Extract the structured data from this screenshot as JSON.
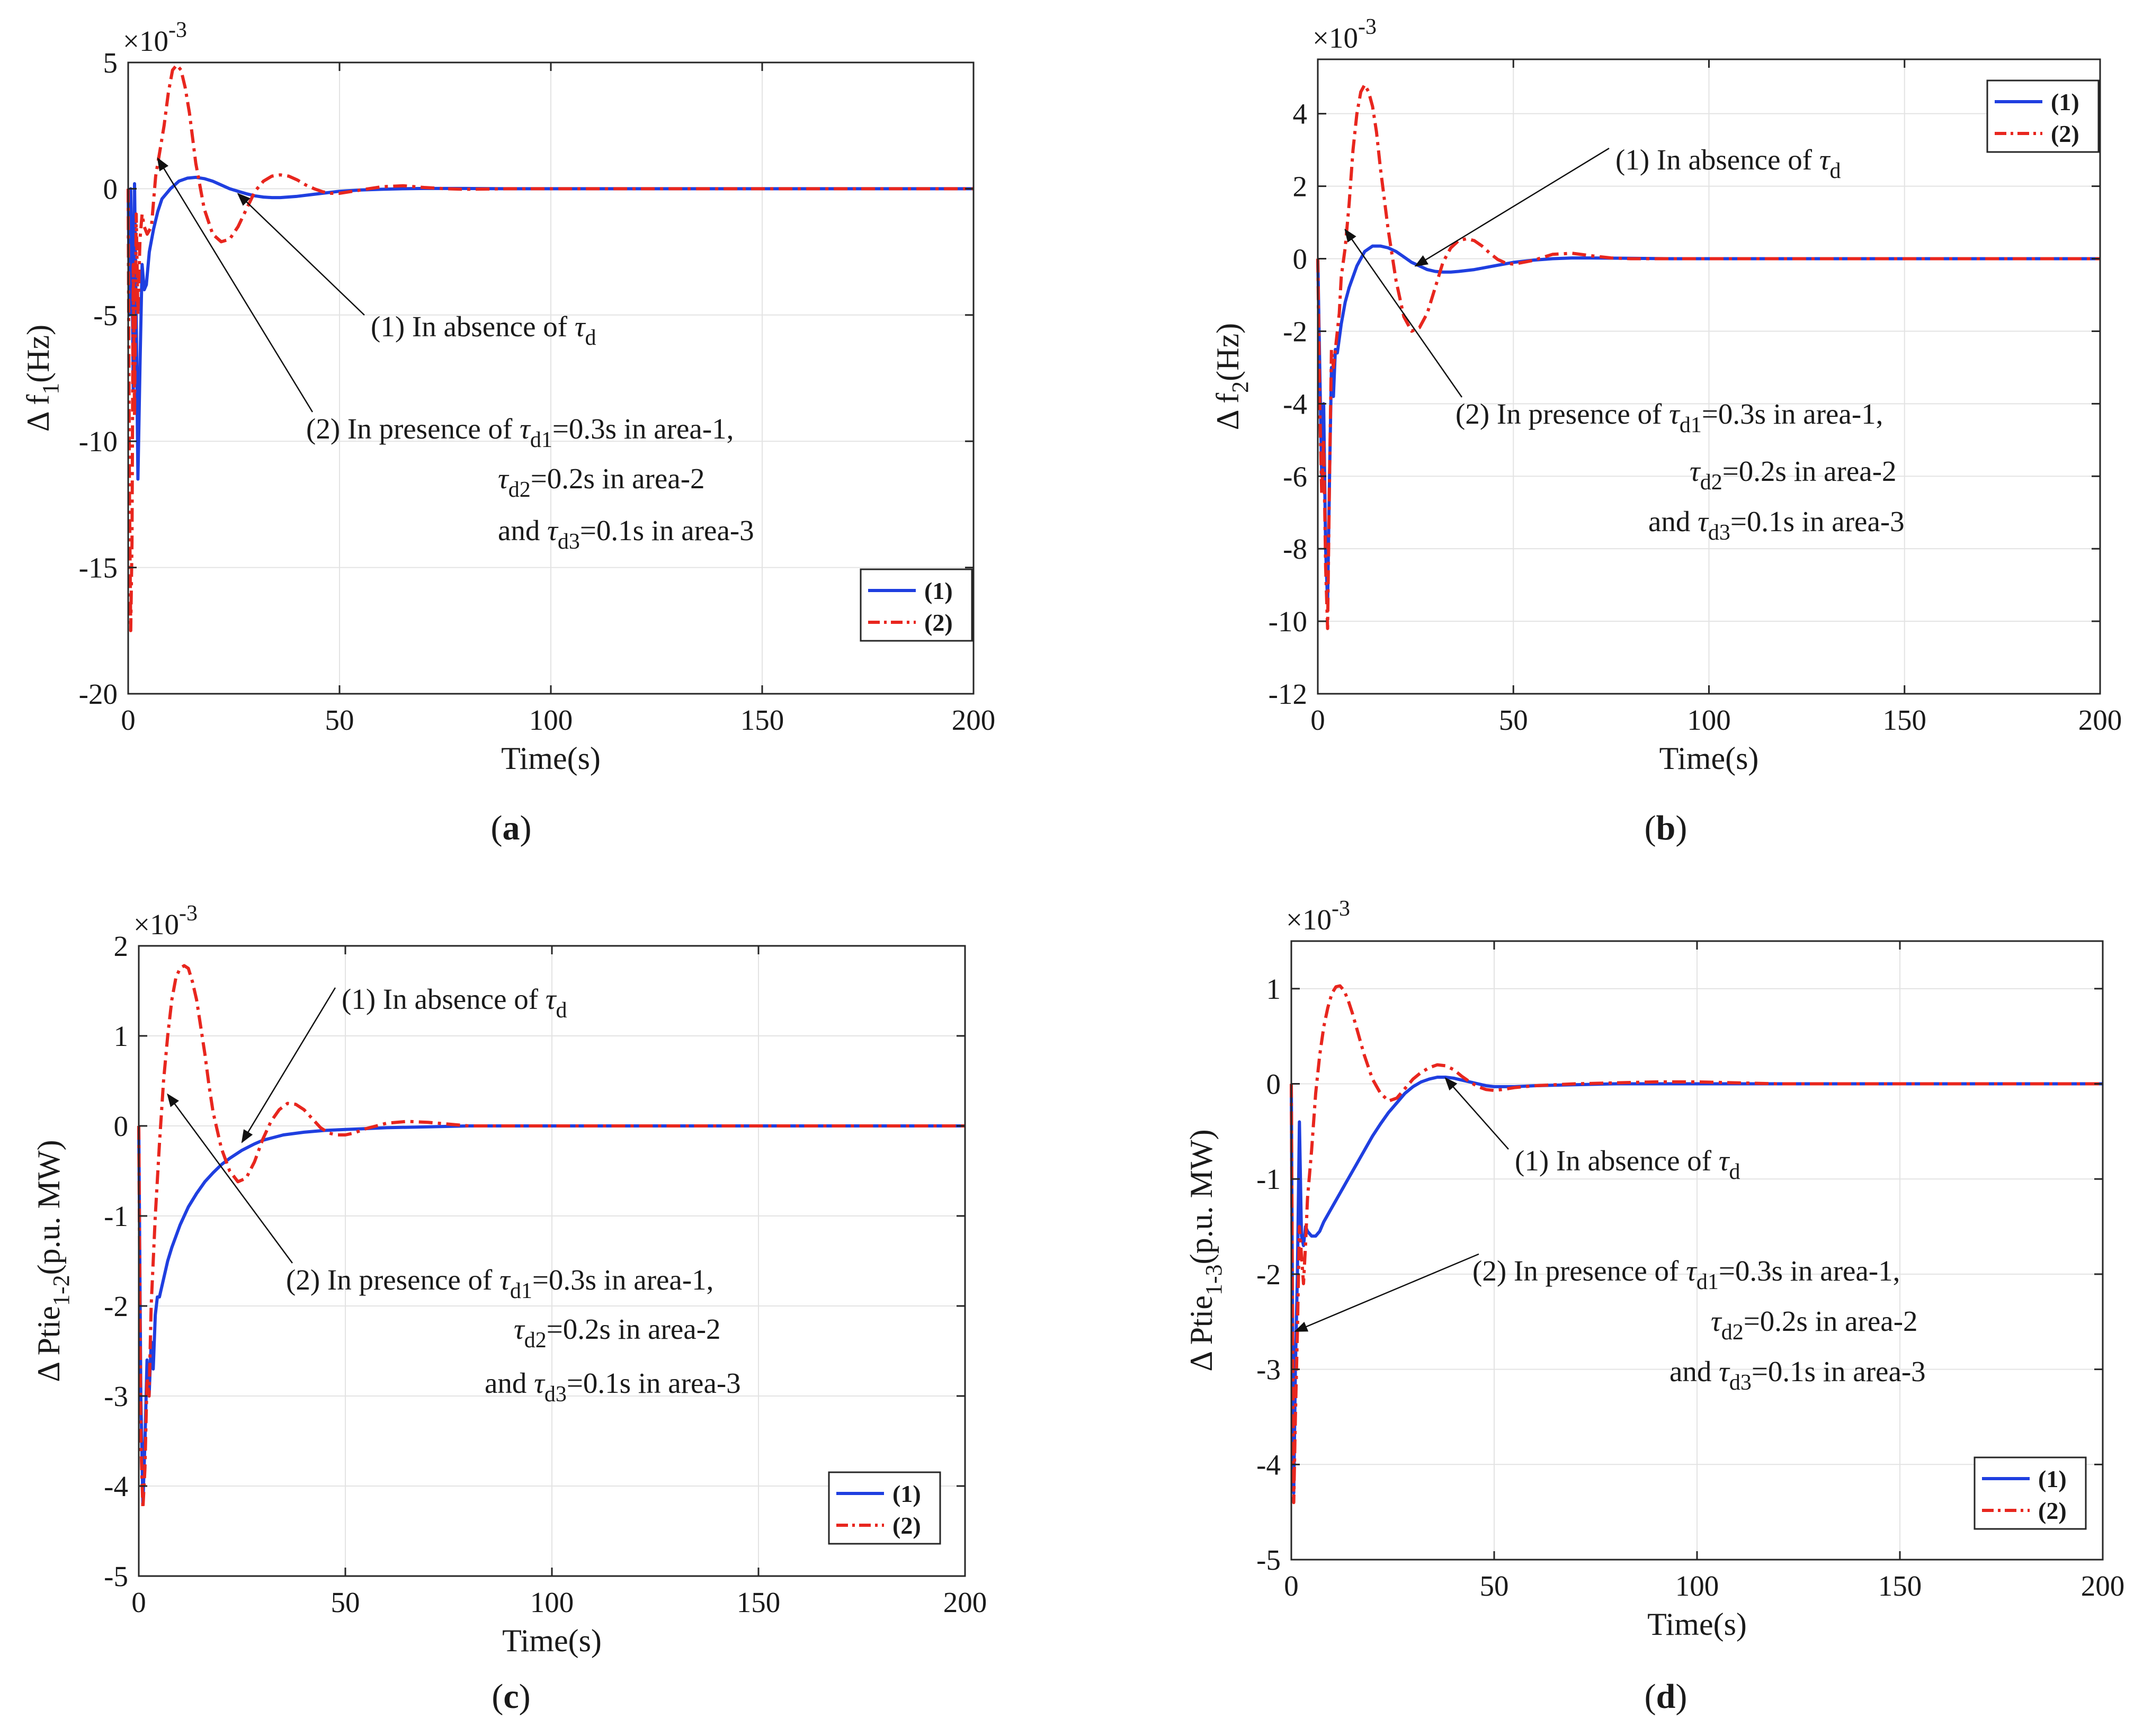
{
  "chart_data": [
    {
      "id": "a",
      "panel_label": "a",
      "type": "line",
      "title": "",
      "xlabel": "Time(s)",
      "ylabel": "Δ f",
      "ylabel_sub": "1",
      "ylabel_unit": "(Hz)",
      "exponent": "×10",
      "exponent_power": "-3",
      "xlim": [
        0,
        200
      ],
      "ylim": [
        -20,
        5
      ],
      "xticks": [
        0,
        50,
        100,
        150,
        200
      ],
      "yticks": [
        -20,
        -15,
        -10,
        -5,
        0,
        5
      ],
      "grid": true,
      "legend_position": "bottom-right",
      "series": [
        {
          "name": "(1)",
          "style": "solid",
          "color": "#1f3fe0",
          "x": [
            0,
            0.3,
            0.6,
            0.9,
            1.2,
            1.5,
            1.9,
            2.3,
            2.8,
            3.3,
            3.8,
            4.3,
            5,
            6,
            7,
            8,
            10,
            12,
            14,
            16,
            18,
            20,
            22,
            24,
            26,
            28,
            30,
            32,
            34,
            36,
            40,
            45,
            50,
            55,
            60,
            65,
            70,
            80,
            90,
            100,
            120,
            150,
            200
          ],
          "y": [
            0,
            -5,
            0,
            -3,
            -8,
            0.2,
            -5,
            -11.5,
            -7,
            -3,
            -4,
            -3.8,
            -2.5,
            -1.6,
            -0.9,
            -0.4,
            0,
            0.3,
            0.42,
            0.45,
            0.4,
            0.3,
            0.15,
            0,
            -0.1,
            -0.2,
            -0.28,
            -0.33,
            -0.35,
            -0.35,
            -0.3,
            -0.2,
            -0.1,
            -0.05,
            -0.02,
            0,
            0.01,
            0.01,
            0,
            0,
            0,
            0,
            0
          ]
        },
        {
          "name": "(2)",
          "style": "dashdot",
          "color": "#e8261e",
          "x": [
            0,
            0.3,
            0.6,
            0.9,
            1.2,
            1.5,
            1.9,
            2.3,
            2.8,
            3.3,
            3.8,
            4.5,
            5.5,
            6.5,
            7.5,
            8.5,
            9.5,
            10.5,
            11.5,
            12.5,
            13.5,
            14.5,
            16,
            18,
            20,
            22,
            24,
            26,
            28,
            30,
            32,
            34,
            36,
            38,
            40,
            42,
            44,
            46,
            48,
            50,
            55,
            60,
            65,
            70,
            75,
            80,
            90,
            100,
            200
          ],
          "y": [
            0,
            -12,
            -17.5,
            -14,
            -3,
            -9,
            -1,
            -5,
            -2,
            -1,
            -1.5,
            -1.8,
            -1.5,
            0.5,
            1.5,
            2.5,
            3.8,
            4.7,
            4.9,
            4.7,
            4,
            3,
            1,
            -0.8,
            -1.8,
            -2.1,
            -2,
            -1.5,
            -0.8,
            -0.1,
            0.3,
            0.5,
            0.55,
            0.5,
            0.35,
            0.15,
            0,
            -0.12,
            -0.18,
            -0.18,
            -0.05,
            0.08,
            0.12,
            0.05,
            0,
            -0.02,
            0,
            0,
            0
          ]
        }
      ],
      "annotations": [
        {
          "text": "(1) In absence of ",
          "sym": "τ",
          "sub": "d",
          "suffix": "",
          "arrow_to": [
            26,
            -0.2
          ]
        },
        {
          "text": "(2) In presence of ",
          "sym": "τ",
          "sub": "d1",
          "suffix": "=0.3s in area-1,",
          "arrow_to": [
            7,
            1.2
          ]
        },
        {
          "text": "",
          "sym": "τ",
          "sub": "d2",
          "suffix": "=0.2s in area-2"
        },
        {
          "text": "and ",
          "sym": "τ",
          "sub": "d3",
          "suffix": "=0.1s in area-3"
        }
      ]
    },
    {
      "id": "b",
      "panel_label": "b",
      "type": "line",
      "title": "",
      "xlabel": "Time(s)",
      "ylabel": "Δ f",
      "ylabel_sub": "2",
      "ylabel_unit": "(Hz)",
      "exponent": "×10",
      "exponent_power": "-3",
      "xlim": [
        0,
        200
      ],
      "ylim": [
        -12,
        5.5
      ],
      "xticks": [
        0,
        50,
        100,
        150,
        200
      ],
      "yticks": [
        -12,
        -10,
        -8,
        -6,
        -4,
        -2,
        0,
        2,
        4
      ],
      "grid": true,
      "legend_position": "top-right",
      "series": [
        {
          "name": "(1)",
          "style": "solid",
          "color": "#1f3fe0",
          "x": [
            0,
            0.5,
            1,
            1.5,
            2,
            2.5,
            3,
            3.5,
            4,
            4.5,
            5,
            6,
            7,
            8,
            10,
            12,
            14,
            16,
            18,
            20,
            22,
            24,
            26,
            28,
            30,
            32,
            34,
            36,
            40,
            45,
            50,
            55,
            60,
            65,
            70,
            80,
            90,
            100,
            120,
            150,
            200
          ],
          "y": [
            0,
            -3,
            -6,
            -4,
            -8,
            -9.5,
            -6,
            -3,
            -3.8,
            -2.5,
            -2.6,
            -1.8,
            -1.2,
            -0.8,
            -0.2,
            0.2,
            0.35,
            0.35,
            0.3,
            0.2,
            0.05,
            -0.1,
            -0.2,
            -0.3,
            -0.35,
            -0.37,
            -0.37,
            -0.35,
            -0.3,
            -0.2,
            -0.1,
            -0.04,
            0,
            0.02,
            0.02,
            0.01,
            0,
            0,
            0,
            0,
            0
          ]
        },
        {
          "name": "(2)",
          "style": "dashdot",
          "color": "#e8261e",
          "x": [
            0,
            0.5,
            1,
            1.5,
            2,
            2.5,
            3,
            3.5,
            4,
            4.5,
            5,
            5.5,
            6,
            7,
            8,
            9,
            10,
            11,
            12,
            13,
            14,
            15,
            16,
            18,
            20,
            22,
            24,
            26,
            28,
            30,
            32,
            34,
            36,
            38,
            40,
            42,
            44,
            46,
            48,
            50,
            55,
            60,
            65,
            70,
            75,
            80,
            90,
            100,
            200
          ],
          "y": [
            0,
            -4,
            -6.5,
            -5,
            -8.5,
            -10.2,
            -6,
            -2.5,
            -3,
            -2.5,
            -2,
            -1.5,
            -0.5,
            0.3,
            1.5,
            3,
            4,
            4.6,
            4.8,
            4.6,
            4.2,
            3.5,
            2.5,
            0.8,
            -0.6,
            -1.6,
            -2,
            -1.9,
            -1.5,
            -0.8,
            -0.1,
            0.3,
            0.5,
            0.55,
            0.5,
            0.35,
            0.15,
            -0.02,
            -0.12,
            -0.15,
            -0.05,
            0.12,
            0.15,
            0.08,
            0.02,
            0,
            0,
            0,
            0
          ]
        }
      ],
      "annotations": [
        {
          "text": "(1) In absence of ",
          "sym": "τ",
          "sub": "d",
          "suffix": "",
          "arrow_to": [
            25,
            -0.2
          ]
        },
        {
          "text": "(2) In presence of ",
          "sym": "τ",
          "sub": "d1",
          "suffix": "=0.3s in area-1,",
          "arrow_to": [
            7,
            0.8
          ]
        },
        {
          "text": "",
          "sym": "τ",
          "sub": "d2",
          "suffix": "=0.2s in area-2"
        },
        {
          "text": "and ",
          "sym": "τ",
          "sub": "d3",
          "suffix": "=0.1s in area-3"
        }
      ]
    },
    {
      "id": "c",
      "panel_label": "c",
      "type": "line",
      "title": "",
      "xlabel": "Time(s)",
      "ylabel": "Δ Ptie",
      "ylabel_sub": "1-2",
      "ylabel_unit": "(p.u. MW)",
      "exponent": "×10",
      "exponent_power": "-3",
      "xlim": [
        0,
        200
      ],
      "ylim": [
        -5,
        2
      ],
      "xticks": [
        0,
        50,
        100,
        150,
        200
      ],
      "yticks": [
        -5,
        -4,
        -3,
        -2,
        -1,
        0,
        1,
        2
      ],
      "grid": true,
      "legend_position": "bottom-right",
      "series": [
        {
          "name": "(1)",
          "style": "solid",
          "color": "#1f3fe0",
          "x": [
            0,
            0.5,
            1,
            1.5,
            2,
            2.5,
            3,
            3.5,
            4,
            4.5,
            5,
            6,
            7,
            8,
            10,
            12,
            14,
            16,
            18,
            20,
            22,
            25,
            28,
            30,
            35,
            40,
            45,
            50,
            55,
            60,
            70,
            80,
            90,
            100,
            120,
            150,
            200
          ],
          "y": [
            0,
            -3,
            -4.2,
            -3.5,
            -2.6,
            -3,
            -2.4,
            -2.7,
            -2.1,
            -1.9,
            -1.9,
            -1.7,
            -1.5,
            -1.35,
            -1.1,
            -0.9,
            -0.75,
            -0.62,
            -0.52,
            -0.43,
            -0.36,
            -0.27,
            -0.2,
            -0.16,
            -0.1,
            -0.07,
            -0.05,
            -0.04,
            -0.03,
            -0.02,
            -0.01,
            0,
            0,
            0,
            0,
            0,
            0
          ]
        },
        {
          "name": "(2)",
          "style": "dashdot",
          "color": "#e8261e",
          "x": [
            0,
            0.5,
            1,
            1.5,
            2,
            2.5,
            3,
            3.5,
            4,
            5,
            6,
            7,
            8,
            9,
            10,
            11,
            12,
            13,
            14,
            15,
            16,
            17,
            18,
            20,
            22,
            24,
            26,
            28,
            30,
            32,
            34,
            36,
            38,
            40,
            42,
            44,
            46,
            48,
            50,
            52,
            55,
            60,
            65,
            70,
            75,
            80,
            90,
            100,
            200
          ],
          "y": [
            0,
            -3.5,
            -4.25,
            -3.8,
            -2.8,
            -3,
            -2,
            -1.5,
            -1,
            -0.2,
            0.5,
            1,
            1.4,
            1.65,
            1.75,
            1.78,
            1.75,
            1.6,
            1.4,
            1.1,
            0.8,
            0.45,
            0.15,
            -0.25,
            -0.5,
            -0.62,
            -0.58,
            -0.4,
            -0.15,
            0.05,
            0.18,
            0.25,
            0.24,
            0.18,
            0.08,
            -0.02,
            -0.08,
            -0.1,
            -0.1,
            -0.08,
            -0.03,
            0.03,
            0.05,
            0.04,
            0.02,
            0,
            0,
            0,
            0
          ]
        }
      ],
      "annotations": [
        {
          "text": "(1) In absence of ",
          "sym": "τ",
          "sub": "d",
          "suffix": "",
          "arrow_to": [
            25,
            -0.18
          ]
        },
        {
          "text": "(2) In presence of ",
          "sym": "τ",
          "sub": "d1",
          "suffix": "=0.3s in area-1,",
          "arrow_to": [
            7,
            0.35
          ]
        },
        {
          "text": "",
          "sym": "τ",
          "sub": "d2",
          "suffix": "=0.2s in area-2"
        },
        {
          "text": "and ",
          "sym": "τ",
          "sub": "d3",
          "suffix": "=0.1s in area-3"
        }
      ]
    },
    {
      "id": "d",
      "panel_label": "d",
      "type": "line",
      "title": "",
      "xlabel": "Time(s)",
      "ylabel": "Δ Ptie",
      "ylabel_sub": "1-3",
      "ylabel_unit": "(p.u. MW)",
      "exponent": "×10",
      "exponent_power": "-3",
      "xlim": [
        0,
        200
      ],
      "ylim": [
        -5,
        1.5
      ],
      "xticks": [
        0,
        50,
        100,
        150,
        200
      ],
      "yticks": [
        -5,
        -4,
        -3,
        -2,
        -1,
        0,
        1
      ],
      "grid": true,
      "legend_position": "bottom-right",
      "series": [
        {
          "name": "(1)",
          "style": "solid",
          "color": "#1f3fe0",
          "x": [
            0,
            0.3,
            0.6,
            1,
            1.5,
            2,
            2.5,
            3,
            3.5,
            4,
            5,
            6,
            7,
            8,
            10,
            12,
            14,
            16,
            18,
            20,
            22,
            24,
            26,
            28,
            30,
            32,
            34,
            36,
            38,
            40,
            42,
            44,
            46,
            48,
            50,
            55,
            60,
            70,
            80,
            100,
            150,
            200
          ],
          "y": [
            0,
            -2.5,
            -4.3,
            -3,
            -2,
            -0.4,
            -1.6,
            -1.7,
            -1.5,
            -1.55,
            -1.6,
            -1.6,
            -1.55,
            -1.45,
            -1.3,
            -1.15,
            -1,
            -0.85,
            -0.7,
            -0.55,
            -0.42,
            -0.3,
            -0.2,
            -0.1,
            -0.03,
            0.02,
            0.05,
            0.07,
            0.07,
            0.06,
            0.04,
            0.02,
            0,
            -0.02,
            -0.03,
            -0.03,
            -0.02,
            -0.01,
            0,
            0,
            0,
            0
          ]
        },
        {
          "name": "(2)",
          "style": "dashdot",
          "color": "#e8261e",
          "x": [
            0,
            0.3,
            0.6,
            1,
            1.5,
            2,
            2.5,
            3,
            3.5,
            4,
            5,
            6,
            7,
            8,
            9,
            10,
            11,
            12,
            13,
            14,
            15,
            16,
            17,
            18,
            20,
            22,
            24,
            26,
            28,
            30,
            32,
            34,
            36,
            38,
            40,
            42,
            44,
            46,
            48,
            50,
            52,
            55,
            60,
            70,
            80,
            90,
            100,
            110,
            120,
            150,
            200
          ],
          "y": [
            0,
            -2.5,
            -4.4,
            -3.5,
            -2.6,
            -1.5,
            -1.8,
            -2.1,
            -1.7,
            -1.2,
            -0.7,
            -0.1,
            0.3,
            0.6,
            0.8,
            0.95,
            1.02,
            1.03,
            0.98,
            0.88,
            0.75,
            0.6,
            0.45,
            0.3,
            0.05,
            -0.1,
            -0.18,
            -0.15,
            -0.05,
            0.05,
            0.12,
            0.17,
            0.2,
            0.19,
            0.15,
            0.08,
            0.02,
            -0.03,
            -0.06,
            -0.07,
            -0.06,
            -0.04,
            -0.02,
            0,
            0.01,
            0.02,
            0.02,
            0.01,
            0,
            0,
            0
          ]
        }
      ],
      "annotations": [
        {
          "text": "(1) In absence of ",
          "sym": "τ",
          "sub": "d",
          "suffix": "",
          "arrow_to": [
            38,
            0.06
          ]
        },
        {
          "text": "(2) In presence of ",
          "sym": "τ",
          "sub": "d1",
          "suffix": "=0.3s in area-1,",
          "arrow_to": [
            1,
            -2.6
          ]
        },
        {
          "text": "",
          "sym": "τ",
          "sub": "d2",
          "suffix": "=0.2s in area-2"
        },
        {
          "text": "and ",
          "sym": "τ",
          "sub": "d3",
          "suffix": "=0.1s in area-3"
        }
      ]
    }
  ]
}
